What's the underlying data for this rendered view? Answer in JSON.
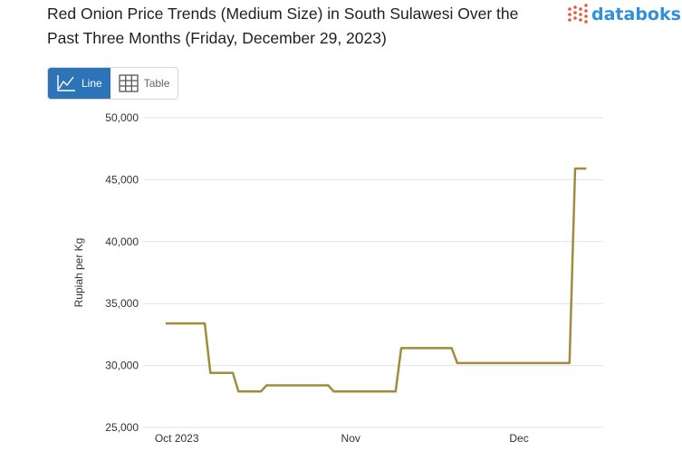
{
  "header": {
    "title": "Red Onion Price Trends (Medium Size) in South Sulawesi Over the Past Three Months (Friday, December 29, 2023)"
  },
  "brand": {
    "name": "databoks",
    "color": "#2f8fd8",
    "mark_color": "#e8583a"
  },
  "view_toggle": {
    "line_label": "Line",
    "table_label": "Table",
    "selected": "Line",
    "active_color": "#2c74b7"
  },
  "chart_data": {
    "type": "line",
    "title": "Red Onion Price Trends (Medium Size) in South Sulawesi Over the Past Three Months (Friday, December 29, 2023)",
    "xlabel": "",
    "ylabel": "Rupiah per Kg",
    "ylim": [
      25000,
      50000
    ],
    "y_ticks": [
      25000,
      30000,
      35000,
      40000,
      45000,
      50000
    ],
    "y_tick_labels": [
      "25,000",
      "30,000",
      "35,000",
      "40,000",
      "45,000",
      "50,000"
    ],
    "x_ticks": [
      {
        "date": "2023-10-01",
        "label": "Oct 2023"
      },
      {
        "date": "2023-11-01",
        "label": "Nov"
      },
      {
        "date": "2023-12-01",
        "label": "Dec"
      }
    ],
    "grid": true,
    "legend": "none",
    "series": [
      {
        "color": "#a08c3a",
        "points": [
          {
            "x": "2023-09-29",
            "y": 33400
          },
          {
            "x": "2023-10-06",
            "y": 33400
          },
          {
            "x": "2023-10-07",
            "y": 29400
          },
          {
            "x": "2023-10-11",
            "y": 29400
          },
          {
            "x": "2023-10-12",
            "y": 27900
          },
          {
            "x": "2023-10-16",
            "y": 27900
          },
          {
            "x": "2023-10-17",
            "y": 28400
          },
          {
            "x": "2023-10-28",
            "y": 28400
          },
          {
            "x": "2023-10-29",
            "y": 27900
          },
          {
            "x": "2023-11-09",
            "y": 27900
          },
          {
            "x": "2023-11-10",
            "y": 31400
          },
          {
            "x": "2023-11-19",
            "y": 31400
          },
          {
            "x": "2023-11-20",
            "y": 30200
          },
          {
            "x": "2023-11-29",
            "y": 30200
          },
          {
            "x": "2023-12-10",
            "y": 30200
          },
          {
            "x": "2023-12-11",
            "y": 45900
          },
          {
            "x": "2023-12-13",
            "y": 45900
          }
        ]
      }
    ]
  }
}
